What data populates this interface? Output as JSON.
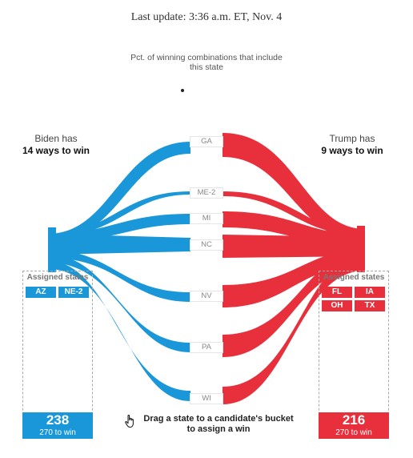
{
  "header": {
    "last_update": "Last update: 3:36 a.m. ET, Nov. 4",
    "annotation": "Pct. of winning combinations that include this state"
  },
  "biden": {
    "label": "Biden has",
    "ways": "14 ways to win",
    "bucket_title": "Assigned states",
    "assigned": [
      "AZ",
      "NE-2"
    ],
    "total": "238",
    "sub": "270 to win",
    "color": "#1a97d8"
  },
  "trump": {
    "label": "Trump has",
    "ways": "9 ways to win",
    "bucket_title": "Assigned states",
    "assigned": [
      "FL",
      "IA",
      "OH",
      "TX"
    ],
    "total": "216",
    "sub": "270 to win",
    "color": "#e8303c"
  },
  "states": [
    "GA",
    "ME-2",
    "MI",
    "NC",
    "NV",
    "PA",
    "WI"
  ],
  "hint": {
    "icon": "hand-pointer-icon",
    "text": "Drag a state to a candidate's bucket to assign a win"
  }
}
